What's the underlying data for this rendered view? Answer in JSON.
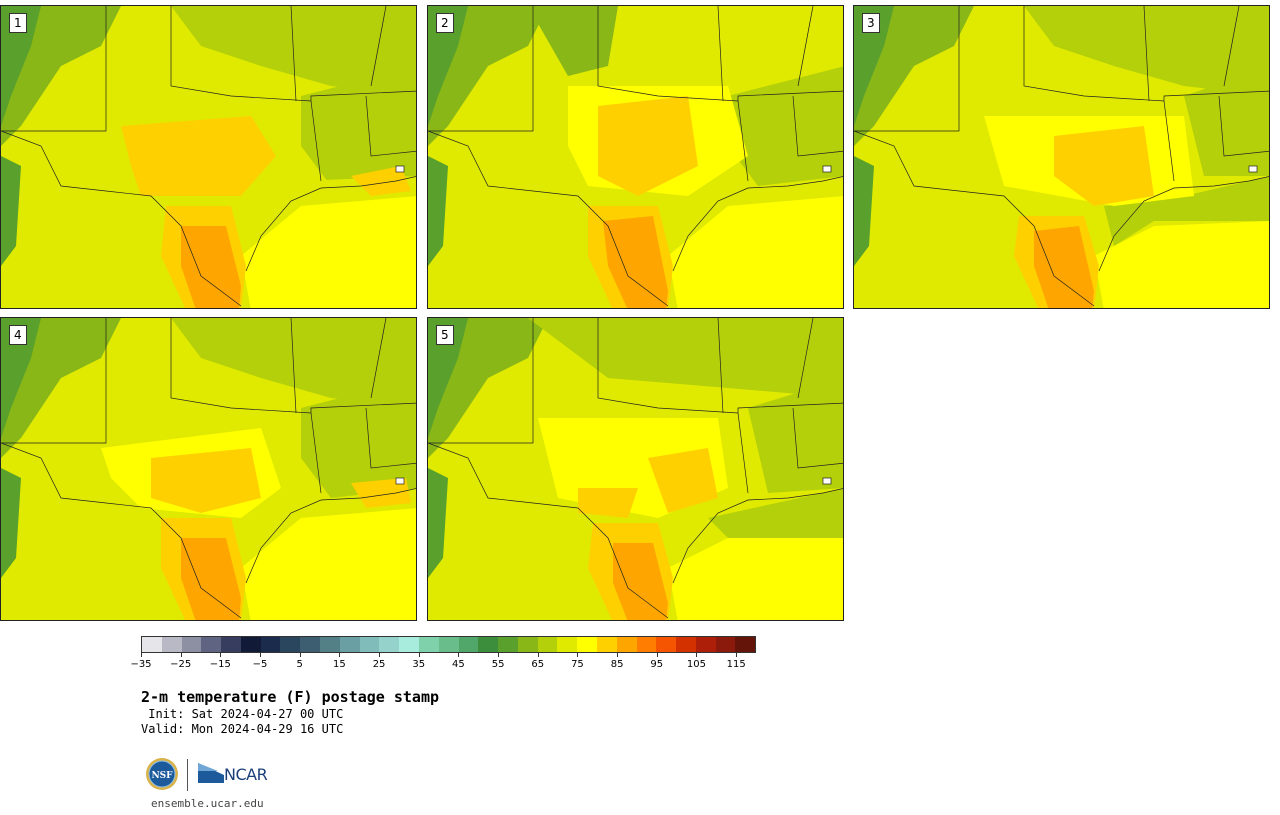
{
  "panels": [
    {
      "label": "1"
    },
    {
      "label": "2"
    },
    {
      "label": "3"
    },
    {
      "label": "4"
    },
    {
      "label": "5"
    }
  ],
  "colorbar": {
    "colors": [
      "#e6e6ea",
      "#b8b9c4",
      "#8d90a3",
      "#5e6482",
      "#363d5e",
      "#111b38",
      "#1b2b4b",
      "#2a465f",
      "#3d5e70",
      "#528086",
      "#6aa0a4",
      "#80bcba",
      "#95d2cc",
      "#a7ecdc",
      "#7fd1ac",
      "#69bd8a",
      "#51a769",
      "#3c8e3c",
      "#5aa02c",
      "#88b717",
      "#b4d00a",
      "#dfea00",
      "#ffff00",
      "#ffd000",
      "#ffa500",
      "#ff7d00",
      "#f55400",
      "#d43100",
      "#ae1f0a",
      "#8c1a0c",
      "#641408"
    ],
    "tick_labels": [
      "−35",
      "−25",
      "−15",
      "−5",
      "5",
      "15",
      "25",
      "35",
      "45",
      "55",
      "65",
      "75",
      "85",
      "95",
      "105",
      "115"
    ]
  },
  "title": "2-m temperature (F) postage stamp",
  "init": " Init: Sat 2024-04-27 00 UTC",
  "valid": "Valid: Mon 2024-04-29 16 UTC",
  "logos": {
    "nsf": "NSF",
    "ncar": "NCAR"
  },
  "site": "ensemble.ucar.edu"
}
